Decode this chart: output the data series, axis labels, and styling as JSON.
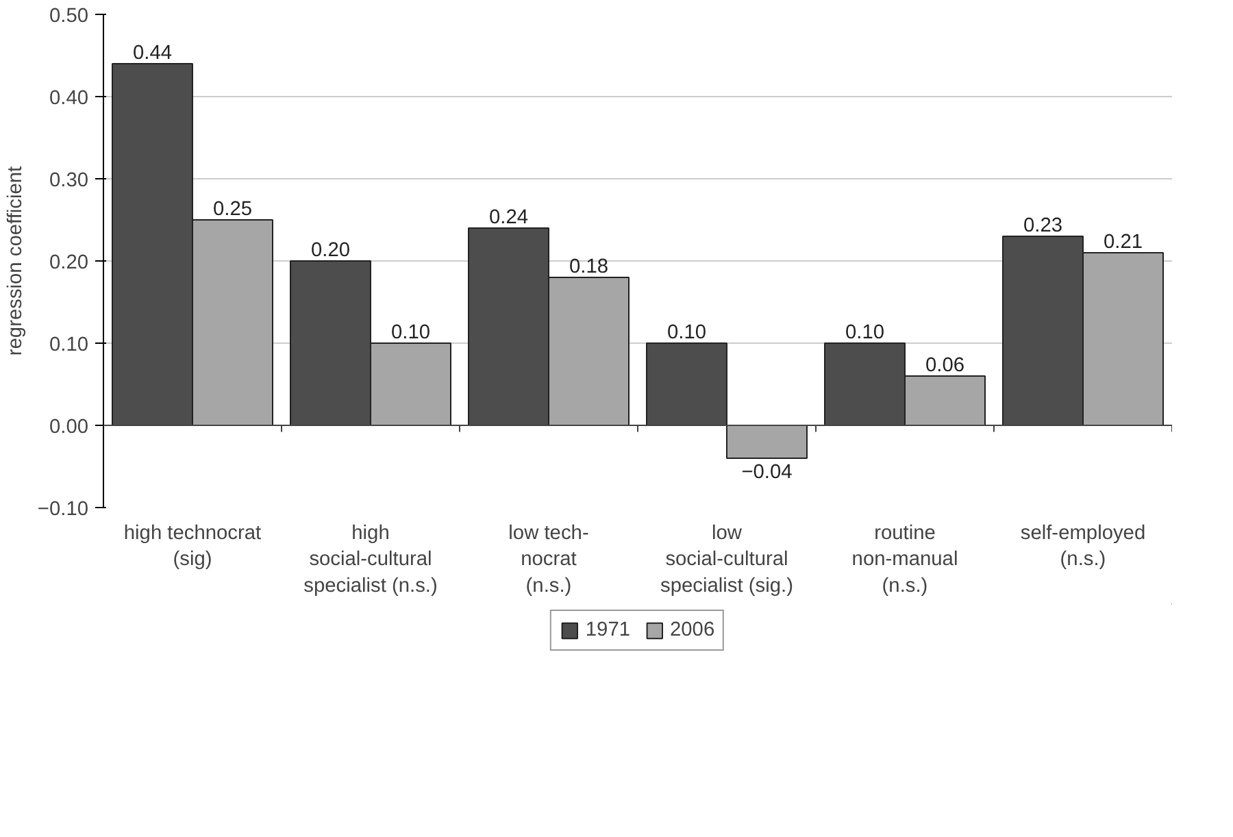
{
  "chart_data": {
    "type": "bar",
    "ylabel": "regression coefficient",
    "categories": [
      "high technocrat\n(sig)",
      "high\nsocial-cultural\nspecialist (n.s.)",
      "low tech-\nnocrat\n(n.s.)",
      "low\nsocial-cultural\nspecialist (sig.)",
      "routine\nnon-manual\n(n.s.)",
      "self-employed\n(n.s.)"
    ],
    "series": [
      {
        "name": "1971",
        "color": "#4d4d4d",
        "values": [
          0.44,
          0.2,
          0.24,
          0.1,
          0.1,
          0.23
        ],
        "value_labels": [
          "0.44",
          "0.20",
          "0.24",
          "0.10",
          "0.10",
          "0.23"
        ]
      },
      {
        "name": "2006",
        "color": "#a6a6a6",
        "values": [
          0.25,
          0.1,
          0.18,
          -0.04,
          0.06,
          0.21
        ],
        "value_labels": [
          "0.25",
          "0.10",
          "0.18",
          "−0.04",
          "0.06",
          "0.21"
        ]
      }
    ],
    "ylim": [
      -0.1,
      0.5
    ],
    "yticks": [
      {
        "value": -0.1,
        "label": "−0.10"
      },
      {
        "value": 0.0,
        "label": "0.00"
      },
      {
        "value": 0.1,
        "label": "0.10"
      },
      {
        "value": 0.2,
        "label": "0.20"
      },
      {
        "value": 0.3,
        "label": "0.30"
      },
      {
        "value": 0.4,
        "label": "0.40"
      },
      {
        "value": 0.5,
        "label": "0.50"
      }
    ],
    "grid": "y",
    "legend": "bottom"
  }
}
